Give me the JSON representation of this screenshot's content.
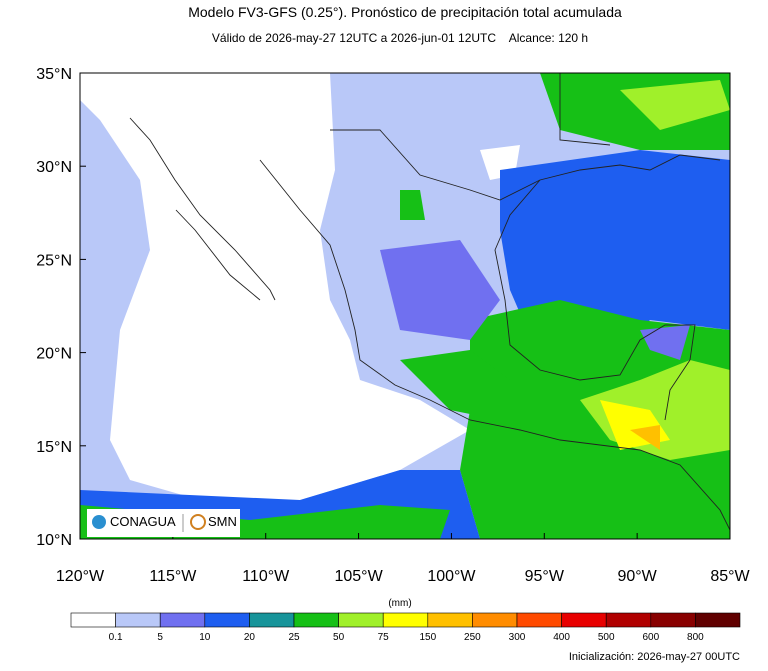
{
  "header": {
    "title": "Modelo FV3-GFS (0.25°). Pronóstico de precipitación total acumulada",
    "subtitle": "Válido de 2026-may-27 12UTC a 2026-jun-01 12UTC    Alcance: 120 h"
  },
  "map": {
    "lonlim": [
      -120,
      -85
    ],
    "latlim": [
      10,
      35
    ],
    "lon_ticks": [
      {
        "value": -120,
        "label": "120°W"
      },
      {
        "value": -115,
        "label": "115°W"
      },
      {
        "value": -110,
        "label": "110°W"
      },
      {
        "value": -105,
        "label": "105°W"
      },
      {
        "value": -100,
        "label": "100°W"
      },
      {
        "value": -95,
        "label": "95°W"
      },
      {
        "value": -90,
        "label": "90°W"
      },
      {
        "value": -85,
        "label": "85°W"
      }
    ],
    "lat_ticks": [
      {
        "value": 10,
        "label": "10°N"
      },
      {
        "value": 15,
        "label": "15°N"
      },
      {
        "value": 20,
        "label": "20°N"
      },
      {
        "value": 25,
        "label": "25°N"
      },
      {
        "value": 30,
        "label": "30°N"
      },
      {
        "value": 35,
        "label": "35°N"
      }
    ]
  },
  "logos": {
    "left": "CONAGUA",
    "right": "SMN"
  },
  "colorbar": {
    "unit": "(mm)",
    "levels": [
      0.1,
      5,
      10,
      20,
      25,
      50,
      75,
      150,
      250,
      300,
      400,
      500,
      600,
      800
    ],
    "colors": [
      "#ffffff",
      "#b9c8f8",
      "#7070f0",
      "#1e5ef0",
      "#17949a",
      "#16c016",
      "#a0f02a",
      "#ffff00",
      "#ffc000",
      "#ff8c00",
      "#ff4a00",
      "#e80000",
      "#b00000",
      "#880000",
      "#600000"
    ]
  },
  "footer": {
    "init": "Inicialización: 2026-may-27 00UTC"
  }
}
